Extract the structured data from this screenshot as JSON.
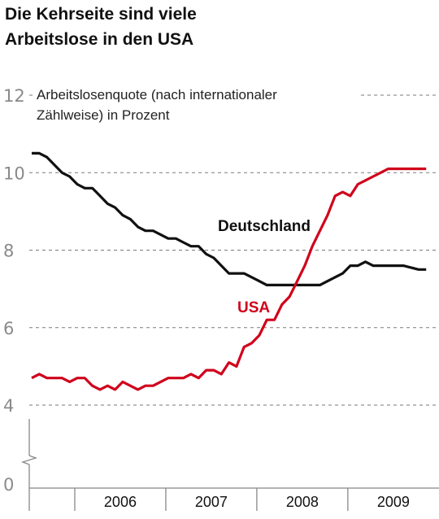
{
  "title": {
    "line1": "Die Kehrseite sind viele",
    "line2": "Arbeitslose in den USA"
  },
  "chart_data": {
    "type": "line",
    "title": "Die Kehrseite sind viele Arbeitslose in den USA",
    "ylabel": "Arbeitslosenquote (nach internationaler Zählweise) in Prozent",
    "annotation": {
      "line1": "Arbeitslosenquote (nach internationaler",
      "line2": "Zählweise) in Prozent"
    },
    "ylim": [
      0,
      12
    ],
    "axis_break": [
      0,
      4
    ],
    "yticks": [
      "0",
      "4",
      "6",
      "8",
      "10",
      "12"
    ],
    "ytick_values": [
      0,
      4,
      6,
      8,
      10,
      12
    ],
    "categories": [
      "2006",
      "2007",
      "2008",
      "2009"
    ],
    "x_start": "2005-07",
    "x_end": "2009-11",
    "x_unit": "months since 2005-07",
    "grid": "dashed horizontal",
    "series": [
      {
        "name": "Deutschland",
        "color": "#111111",
        "x": [
          0,
          1,
          2,
          3,
          4,
          5,
          6,
          7,
          8,
          9,
          10,
          11,
          12,
          13,
          14,
          15,
          16,
          17,
          18,
          19,
          20,
          21,
          22,
          23,
          24,
          25,
          26,
          27,
          28,
          29,
          30,
          31,
          32,
          33,
          34,
          35,
          36,
          37,
          38,
          39,
          40,
          41,
          42,
          43,
          44,
          45,
          46,
          47,
          48,
          49,
          50,
          51,
          52
        ],
        "values": [
          10.5,
          10.5,
          10.4,
          10.2,
          10.0,
          9.9,
          9.7,
          9.6,
          9.6,
          9.4,
          9.2,
          9.1,
          8.9,
          8.8,
          8.6,
          8.5,
          8.5,
          8.4,
          8.3,
          8.3,
          8.2,
          8.1,
          8.1,
          7.9,
          7.8,
          7.6,
          7.4,
          7.4,
          7.4,
          7.3,
          7.2,
          7.1,
          7.1,
          7.1,
          7.1,
          7.1,
          7.1,
          7.1,
          7.1,
          7.2,
          7.3,
          7.4,
          7.6,
          7.6,
          7.7,
          7.6,
          7.6,
          7.6,
          7.6,
          7.6,
          7.55,
          7.5,
          7.5
        ]
      },
      {
        "name": "USA",
        "color": "#d0021b",
        "x": [
          0,
          1,
          2,
          3,
          4,
          5,
          6,
          7,
          8,
          9,
          10,
          11,
          12,
          13,
          14,
          15,
          16,
          17,
          18,
          19,
          20,
          21,
          22,
          23,
          24,
          25,
          26,
          27,
          28,
          29,
          30,
          31,
          32,
          33,
          34,
          35,
          36,
          37,
          38,
          39,
          40,
          41,
          42,
          43,
          44,
          45,
          46,
          47,
          48,
          49,
          50,
          51,
          52
        ],
        "values": [
          4.7,
          4.8,
          4.7,
          4.7,
          4.7,
          4.6,
          4.7,
          4.7,
          4.5,
          4.4,
          4.5,
          4.4,
          4.6,
          4.5,
          4.4,
          4.5,
          4.5,
          4.6,
          4.7,
          4.7,
          4.7,
          4.8,
          4.7,
          4.9,
          4.9,
          4.8,
          5.1,
          5.0,
          5.5,
          5.6,
          5.8,
          6.2,
          6.2,
          6.6,
          6.8,
          7.2,
          7.6,
          8.1,
          8.5,
          8.9,
          9.4,
          9.5,
          9.4,
          9.7,
          9.8,
          9.9,
          10.0,
          10.1,
          10.1,
          10.1,
          10.1,
          10.1,
          10.1
        ]
      }
    ]
  }
}
